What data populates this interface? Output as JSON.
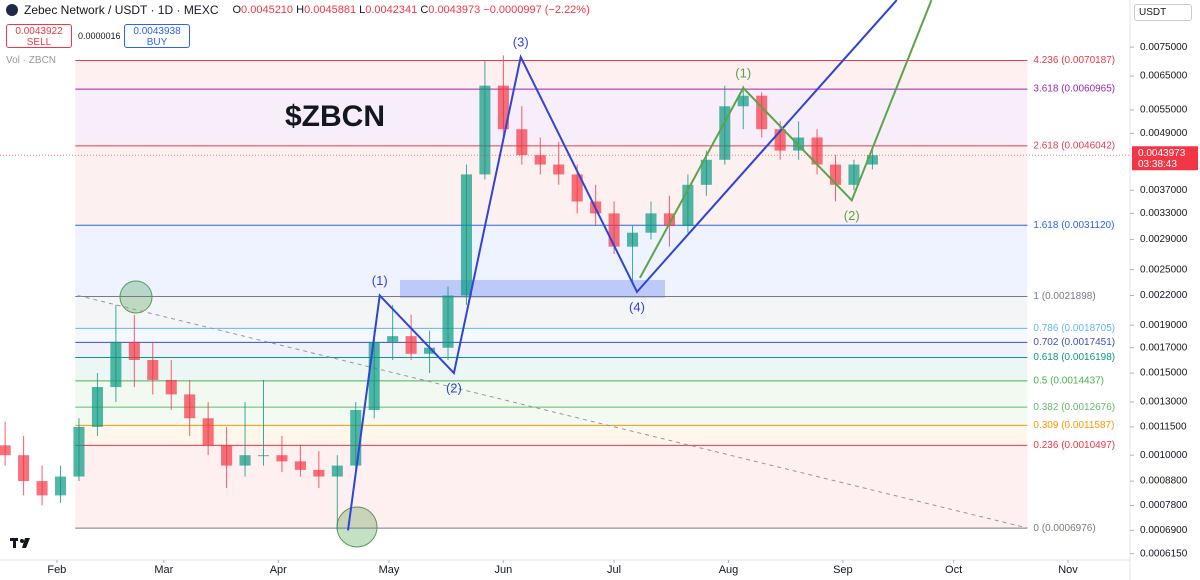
{
  "header": {
    "symbol": "Zebec Network / USDT · 1D · MEXC",
    "ohlc": [
      {
        "key": "O",
        "value": "0.0045210"
      },
      {
        "key": "H",
        "value": "0.0045881"
      },
      {
        "key": "L",
        "value": "0.0042341"
      },
      {
        "key": "C",
        "value": "0.0043973"
      }
    ],
    "change": "−0.0000997 (−2.22%)",
    "sell_price": "0.0043922",
    "sell_label": "SELL",
    "spread": "0.0000016",
    "buy_price": "0.0043938",
    "buy_label": "BUY",
    "volume_label": "Vol · ZBCN",
    "currency": "USDT"
  },
  "chart_data": {
    "type": "candlestick",
    "title": "$ZBCN",
    "log_scale": true,
    "up_color": "#089981",
    "down_color": "#f23645",
    "candle_days": 5,
    "xlim": [
      -15.4,
      290.8
    ],
    "xticks": [
      {
        "value": 0,
        "label": "Feb"
      },
      {
        "value": 29,
        "label": "Mar"
      },
      {
        "value": 60,
        "label": "Apr"
      },
      {
        "value": 90,
        "label": "May"
      },
      {
        "value": 121,
        "label": "Jun"
      },
      {
        "value": 151,
        "label": "Jul"
      },
      {
        "value": 182,
        "label": "Aug"
      },
      {
        "value": 213,
        "label": "Sep"
      },
      {
        "value": 243,
        "label": "Oct"
      },
      {
        "value": 274,
        "label": "Nov"
      }
    ],
    "ylim": [
      0.000596,
      0.00849
    ],
    "yticks": [
      {
        "value": 0.0075,
        "label": "0.0075000"
      },
      {
        "value": 0.0065,
        "label": "0.0065000"
      },
      {
        "value": 0.0055,
        "label": "0.0055000"
      },
      {
        "value": 0.0049,
        "label": "0.0049000"
      },
      {
        "value": 0.0037,
        "label": "0.0037000"
      },
      {
        "value": 0.0033,
        "label": "0.0033000"
      },
      {
        "value": 0.0029,
        "label": "0.0029000"
      },
      {
        "value": 0.0025,
        "label": "0.0025000"
      },
      {
        "value": 0.0022,
        "label": "0.0022000"
      },
      {
        "value": 0.0019,
        "label": "0.0019000"
      },
      {
        "value": 0.0017,
        "label": "0.0017000"
      },
      {
        "value": 0.0015,
        "label": "0.0015000"
      },
      {
        "value": 0.0013,
        "label": "0.0013000"
      },
      {
        "value": 0.00115,
        "label": "0.0011500"
      },
      {
        "value": 0.001,
        "label": "0.0010000"
      },
      {
        "value": 0.00088,
        "label": "0.0008800"
      },
      {
        "value": 0.00078,
        "label": "0.0007800"
      },
      {
        "value": 0.00069,
        "label": "0.0006900"
      },
      {
        "value": 0.000615,
        "label": "0.0006150"
      }
    ],
    "last_price": {
      "value": 0.0043973,
      "label": "0.0043973",
      "countdown": "03:38:43",
      "color": "#f23645"
    },
    "candles": [
      [
        -14,
        0.00105,
        0.00118,
        0.00095,
        0.001
      ],
      [
        -9,
        0.001,
        0.0011,
        0.00082,
        0.00088
      ],
      [
        -4,
        0.00088,
        0.00095,
        0.00078,
        0.00082
      ],
      [
        1,
        0.00082,
        0.00095,
        0.00079,
        0.0009
      ],
      [
        6,
        0.0009,
        0.0012,
        0.00088,
        0.00115
      ],
      [
        11,
        0.00115,
        0.0015,
        0.0011,
        0.0014
      ],
      [
        16,
        0.0014,
        0.0021,
        0.0013,
        0.00175
      ],
      [
        21,
        0.00175,
        0.002,
        0.0014,
        0.0016
      ],
      [
        26,
        0.0016,
        0.00175,
        0.00135,
        0.00145
      ],
      [
        31,
        0.00145,
        0.0016,
        0.00125,
        0.00135
      ],
      [
        36,
        0.00135,
        0.00145,
        0.0011,
        0.0012
      ],
      [
        41,
        0.0012,
        0.0013,
        0.001,
        0.00105
      ],
      [
        46,
        0.00105,
        0.00115,
        0.00085,
        0.00095
      ],
      [
        51,
        0.00095,
        0.0013,
        0.0009,
        0.001
      ],
      [
        56,
        0.001,
        0.00145,
        0.00095,
        0.001
      ],
      [
        61,
        0.001,
        0.0011,
        0.00092,
        0.00097
      ],
      [
        66,
        0.00097,
        0.00105,
        0.0009,
        0.00093
      ],
      [
        71,
        0.00093,
        0.00102,
        0.00085,
        0.0009
      ],
      [
        76,
        0.0009,
        0.001,
        0.00069,
        0.00095
      ],
      [
        81,
        0.00095,
        0.0013,
        0.0009,
        0.00125
      ],
      [
        86,
        0.00125,
        0.00185,
        0.0012,
        0.00175
      ],
      [
        91,
        0.00175,
        0.0021,
        0.0016,
        0.0018
      ],
      [
        96,
        0.0018,
        0.002,
        0.0016,
        0.00165
      ],
      [
        101,
        0.00165,
        0.00185,
        0.0015,
        0.0017
      ],
      [
        106,
        0.0017,
        0.0023,
        0.0016,
        0.0022
      ],
      [
        111,
        0.0022,
        0.0042,
        0.0021,
        0.004
      ],
      [
        116,
        0.004,
        0.007,
        0.0039,
        0.0062
      ],
      [
        121,
        0.0062,
        0.0072,
        0.0048,
        0.005
      ],
      [
        126,
        0.005,
        0.0056,
        0.0042,
        0.0044
      ],
      [
        131,
        0.0044,
        0.0048,
        0.004,
        0.0042
      ],
      [
        136,
        0.0042,
        0.0047,
        0.0038,
        0.004
      ],
      [
        141,
        0.004,
        0.0042,
        0.0033,
        0.0035
      ],
      [
        146,
        0.0035,
        0.0038,
        0.0031,
        0.0033
      ],
      [
        151,
        0.0033,
        0.0035,
        0.0027,
        0.0028
      ],
      [
        156,
        0.0028,
        0.0031,
        0.00235,
        0.003
      ],
      [
        161,
        0.003,
        0.0035,
        0.0029,
        0.0033
      ],
      [
        166,
        0.0033,
        0.0036,
        0.0028,
        0.0031
      ],
      [
        171,
        0.0031,
        0.004,
        0.003,
        0.0038
      ],
      [
        176,
        0.0038,
        0.0045,
        0.0036,
        0.0043
      ],
      [
        181,
        0.0043,
        0.0062,
        0.0042,
        0.0056
      ],
      [
        186,
        0.0056,
        0.0062,
        0.005,
        0.0059
      ],
      [
        191,
        0.0059,
        0.006,
        0.0048,
        0.005
      ],
      [
        196,
        0.005,
        0.0052,
        0.0043,
        0.0045
      ],
      [
        201,
        0.0045,
        0.0052,
        0.0043,
        0.0048
      ],
      [
        206,
        0.0048,
        0.005,
        0.004,
        0.0042
      ],
      [
        211,
        0.0042,
        0.0044,
        0.0035,
        0.0038
      ],
      [
        216,
        0.0038,
        0.0043,
        0.0037,
        0.0042
      ],
      [
        221,
        0.0042,
        0.0046,
        0.0041,
        0.0043973
      ]
    ],
    "fib_levels": [
      {
        "label": "4.236 (0.0070187)",
        "value": 0.0070187,
        "color": "#f23645"
      },
      {
        "label": "3.618 (0.0060965)",
        "value": 0.0060965,
        "color": "#9c27b0"
      },
      {
        "label": "2.618 (0.0046042)",
        "value": 0.0046042,
        "color": "#e04050"
      },
      {
        "label": "1.618 (0.0031120)",
        "value": 0.003112,
        "color": "#2962ff"
      },
      {
        "label": "1 (0.0021898)",
        "value": 0.0021898,
        "color": "#787b86"
      },
      {
        "label": "0.786 (0.0018705)",
        "value": 0.0018705,
        "color": "#64b5f6"
      },
      {
        "label": "0.702 (0.0017451)",
        "value": 0.0017451,
        "color": "#3f51b5"
      },
      {
        "label": "0.618 (0.0016198)",
        "value": 0.0016198,
        "color": "#089981"
      },
      {
        "label": "0.5 (0.0014437)",
        "value": 0.0014437,
        "color": "#4caf50"
      },
      {
        "label": "0.382 (0.0012676)",
        "value": 0.0012676,
        "color": "#66bb6a"
      },
      {
        "label": "0.309 (0.0011587)",
        "value": 0.0011587,
        "color": "#ff9800"
      },
      {
        "label": "0.236 (0.0010497)",
        "value": 0.0010497,
        "color": "#f23645"
      },
      {
        "label": "0 (0.0006976)",
        "value": 0.0006976,
        "color": "#787b86"
      }
    ],
    "fib_xrange": [
      5,
      263
    ],
    "trendline": {
      "x": [
        5.7,
        263
      ],
      "y": [
        0.0022,
        0.000698
      ],
      "color": "#9598a1"
    },
    "waves": [
      {
        "color": "#2f45d6",
        "points": [
          {
            "x": 78.9,
            "y": 0.00069
          },
          {
            "x": 87.5,
            "y": 0.0022,
            "label": "(1)"
          },
          {
            "x": 107.6,
            "y": 0.0015,
            "label": "(2)"
          },
          {
            "x": 125.7,
            "y": 0.00714,
            "label": "(3)"
          },
          {
            "x": 157.2,
            "y": 0.00224,
            "label": "(4)"
          },
          {
            "x": 227.6,
            "y": 0.00946
          }
        ]
      },
      {
        "color": "#5aa44a",
        "points": [
          {
            "x": 158,
            "y": 0.0024
          },
          {
            "x": 186,
            "y": 0.00613,
            "label": "(1)"
          },
          {
            "x": 215.4,
            "y": 0.00352,
            "label": "(2)"
          },
          {
            "x": 237,
            "y": 0.00946
          }
        ]
      }
    ]
  }
}
